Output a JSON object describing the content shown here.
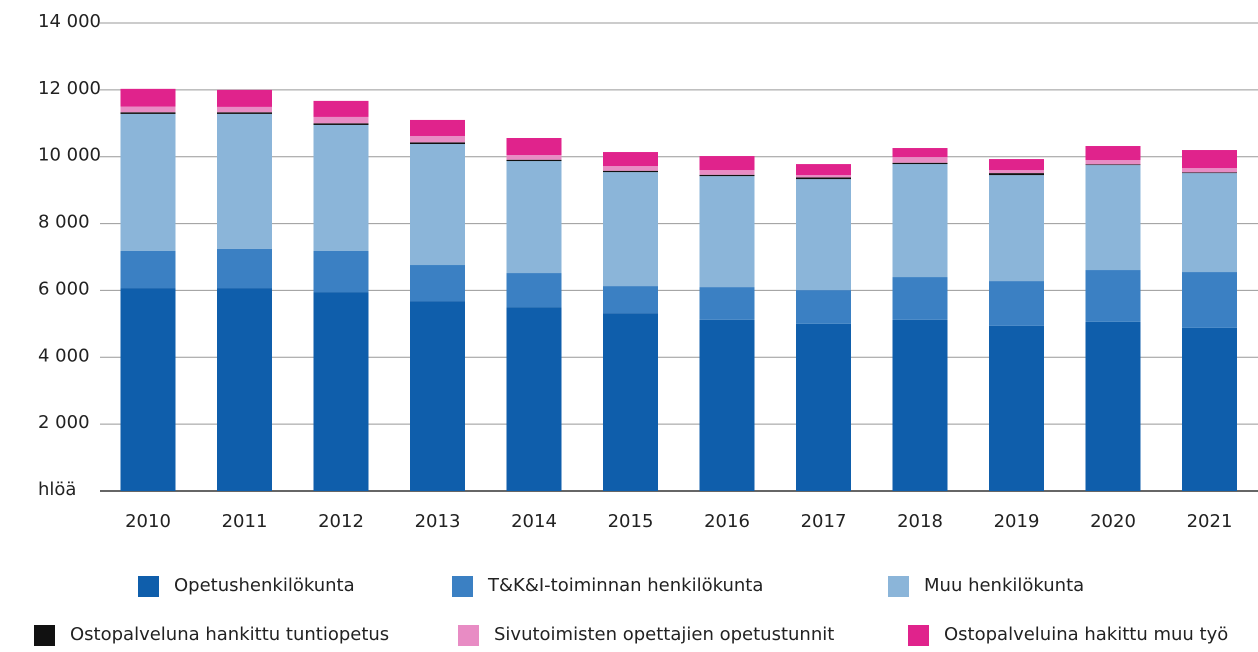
{
  "chart_data": {
    "type": "stacked_bar",
    "categories": [
      "2010",
      "2011",
      "2012",
      "2013",
      "2014",
      "2015",
      "2016",
      "2017",
      "2018",
      "2019",
      "2020",
      "2021"
    ],
    "series": [
      {
        "name": "Opetushenkilökunta",
        "color": "#0f5eab",
        "values": [
          6070,
          6070,
          5950,
          5680,
          5500,
          5320,
          5120,
          5000,
          5120,
          4940,
          5060,
          4880
        ]
      },
      {
        "name": "T&K&I-toiminnan henkilökunta",
        "color": "#3b80c3",
        "values": [
          1110,
          1170,
          1230,
          1080,
          1020,
          810,
          980,
          1010,
          1280,
          1340,
          1550,
          1670
        ]
      },
      {
        "name": "Muu henkilökunta",
        "color": "#8bb5d9",
        "values": [
          4100,
          4040,
          3770,
          3620,
          3350,
          3410,
          3320,
          3320,
          3380,
          3170,
          3140,
          2960
        ]
      },
      {
        "name": "Ostopalveluna hankittu tuntiopetus",
        "color": "#111111",
        "values": [
          50,
          50,
          50,
          50,
          40,
          40,
          40,
          50,
          40,
          60,
          20,
          20
        ]
      },
      {
        "name": "Sivutoimisten opettajien opetustunnit",
        "color": "#e88cc4",
        "values": [
          170,
          160,
          190,
          190,
          140,
          140,
          140,
          70,
          170,
          90,
          130,
          130
        ]
      },
      {
        "name": "Ostopalveluina hakittu muu työ",
        "color": "#e0238c",
        "values": [
          530,
          510,
          480,
          480,
          510,
          420,
          420,
          330,
          270,
          330,
          420,
          540
        ]
      }
    ],
    "ylim": [
      0,
      14000
    ],
    "yticks": [
      {
        "value": 0,
        "label": "hlöä"
      },
      {
        "value": 2000,
        "label": "2 000"
      },
      {
        "value": 4000,
        "label": "4 000"
      },
      {
        "value": 6000,
        "label": "6 000"
      },
      {
        "value": 8000,
        "label": "8 000"
      },
      {
        "value": 10000,
        "label": "10 000"
      },
      {
        "value": 12000,
        "label": "12 000"
      },
      {
        "value": 14000,
        "label": "14 000"
      }
    ],
    "grid": true
  }
}
